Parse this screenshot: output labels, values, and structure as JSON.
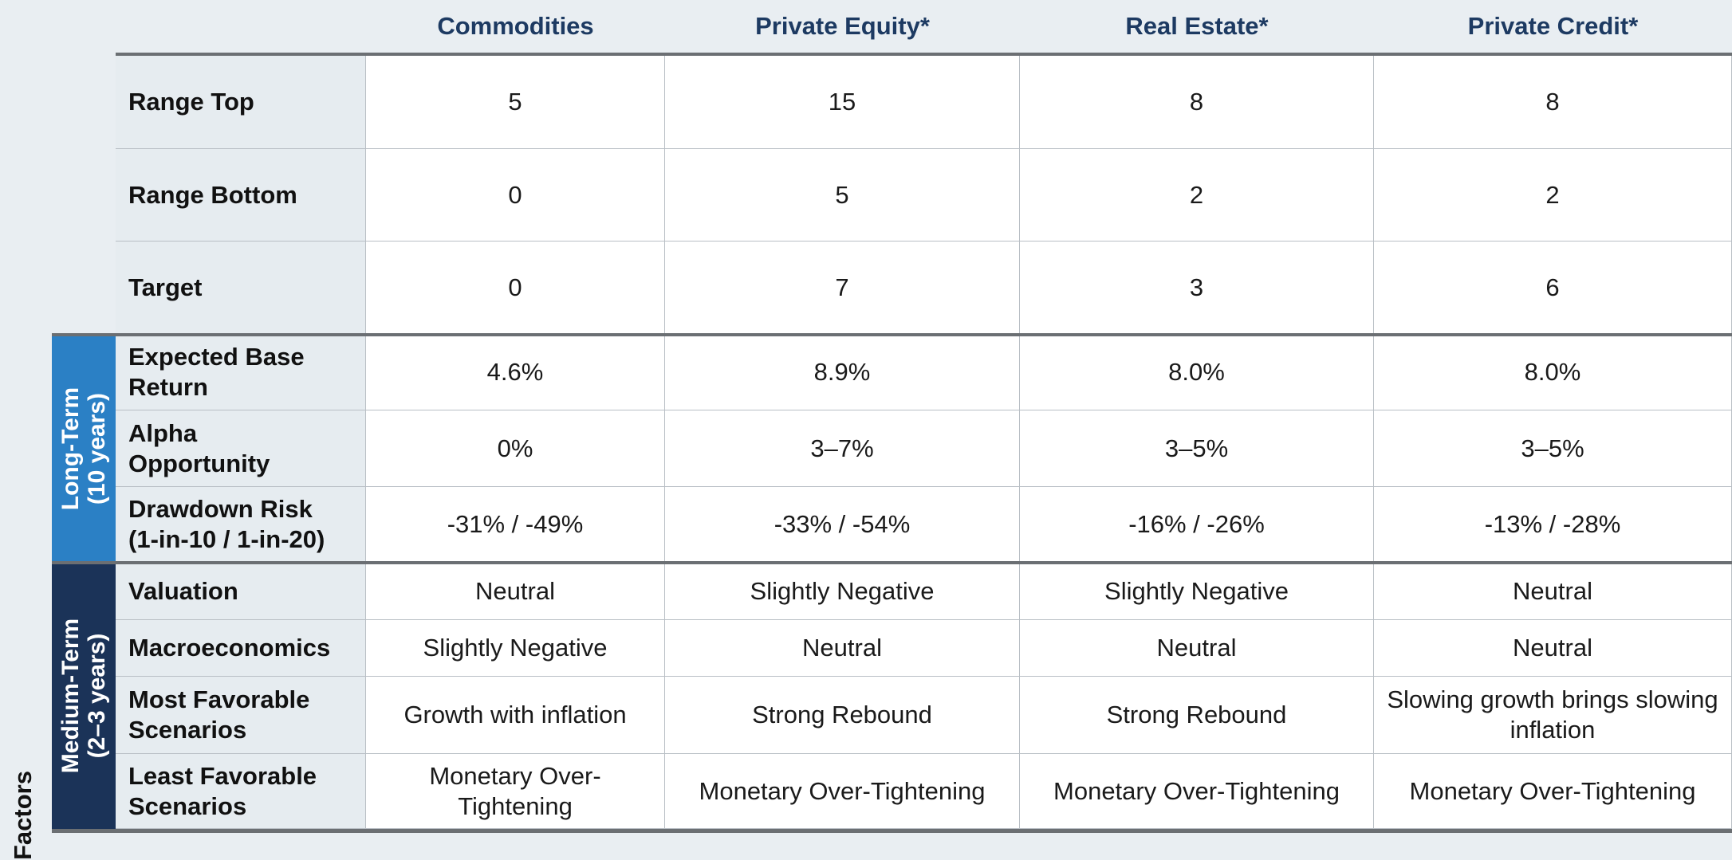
{
  "header": {
    "columns": [
      "Commodities",
      "Private Equity*",
      "Real Estate*",
      "Private Credit*"
    ]
  },
  "rows": [
    {
      "label": [
        "Range Top"
      ],
      "cells": [
        "5",
        "15",
        "8",
        "8"
      ]
    },
    {
      "label": [
        "Range Bottom"
      ],
      "cells": [
        "0",
        "5",
        "2",
        "2"
      ]
    },
    {
      "label": [
        "Target"
      ],
      "cells": [
        "0",
        "7",
        "3",
        "6"
      ]
    },
    {
      "label": [
        "Expected Base",
        "Return"
      ],
      "cells": [
        "4.6%",
        "8.9%",
        "8.0%",
        "8.0%"
      ]
    },
    {
      "label": [
        "Alpha",
        "Opportunity"
      ],
      "cells": [
        "0%",
        "3–7%",
        "3–5%",
        "3–5%"
      ]
    },
    {
      "label": [
        "Drawdown Risk",
        "(1-in-10 / 1-in-20)"
      ],
      "cells": [
        "-31% / -49%",
        "-33% / -54%",
        "-16% / -26%",
        "-13% / -28%"
      ]
    },
    {
      "label": [
        "Valuation"
      ],
      "cells": [
        "Neutral",
        "Slightly Negative",
        "Slightly Negative",
        "Neutral"
      ]
    },
    {
      "label": [
        "Macroeconomics"
      ],
      "cells": [
        "Slightly Negative",
        "Neutral",
        "Neutral",
        "Neutral"
      ]
    },
    {
      "label": [
        "Most Favorable",
        "Scenarios"
      ],
      "cells": [
        "Growth with inflation",
        "Strong Rebound",
        "Strong Rebound",
        "Slowing growth brings slowing inflation"
      ]
    },
    {
      "label": [
        "Least Favorable",
        "Scenarios"
      ],
      "cells": [
        "Monetary Over-Tightening",
        "Monetary Over-Tightening",
        "Monetary Over-Tightening",
        "Monetary Over-Tightening"
      ]
    }
  ],
  "groups": [
    {
      "label": [
        "Long-Term",
        "(10 years)"
      ]
    },
    {
      "label": [
        "Medium-Term",
        "(2–3 years)"
      ]
    }
  ],
  "side_label": "Factors"
}
